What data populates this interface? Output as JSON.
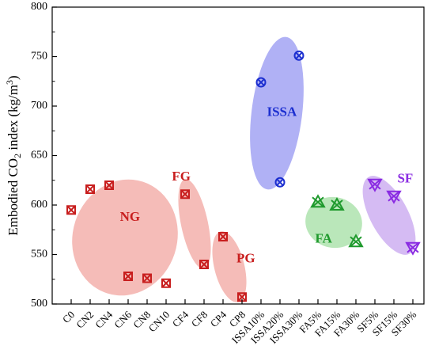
{
  "chart_data": {
    "type": "scatter",
    "title": "",
    "xlabel": "",
    "ylabel": "Embodied CO2 index (kg/m3)",
    "ylabel_parts": {
      "prefix": "Embodied CO",
      "sub": "2",
      "middle": " index (kg/m",
      "sup": "3",
      "suffix": ")"
    },
    "ylim": [
      500,
      800
    ],
    "yticks": [
      500,
      550,
      600,
      650,
      700,
      750,
      800
    ],
    "grid": false,
    "categories": [
      "C0",
      "CN2",
      "CN4",
      "CN6",
      "CN8",
      "CN10",
      "CF4",
      "CF8",
      "CP4",
      "CP8",
      "ISSA10%",
      "ISSA20%",
      "ISSA30%",
      "FA5%",
      "FA15%",
      "FA30%",
      "SF5%",
      "SF15%",
      "SF30%"
    ],
    "series": [
      {
        "group": "NG",
        "marker": "square-x",
        "color": "#c81e1e",
        "values": [
          595,
          616,
          620,
          528,
          526,
          521
        ],
        "x_index": [
          0,
          1,
          2,
          3,
          4,
          5
        ]
      },
      {
        "group": "FG",
        "marker": "square-x",
        "color": "#c81e1e",
        "values": [
          611,
          540
        ],
        "x_index": [
          6,
          7
        ]
      },
      {
        "group": "PG",
        "marker": "square-x",
        "color": "#c81e1e",
        "values": [
          568,
          507
        ],
        "x_index": [
          8,
          9
        ]
      },
      {
        "group": "ISSA",
        "marker": "circle-x",
        "color": "#1c2fd0",
        "values": [
          724,
          623,
          751
        ],
        "x_index": [
          10,
          11,
          12
        ]
      },
      {
        "group": "FA",
        "marker": "triangle-x",
        "color": "#1f9a2d",
        "values": [
          603,
          600,
          563
        ],
        "x_index": [
          13,
          14,
          15
        ]
      },
      {
        "group": "SF",
        "marker": "triangle-down-x",
        "color": "#8a2be2",
        "values": [
          621,
          609,
          557
        ],
        "x_index": [
          16,
          17,
          18
        ]
      }
    ],
    "annotations": [
      {
        "text": "NG",
        "color": "#c81e1e",
        "x_index": 3.1,
        "y": 587,
        "fill": "#f2a9a4"
      },
      {
        "text": "FG",
        "color": "#c81e1e",
        "x_index": 5.8,
        "y": 628,
        "fill": "#f2a9a4"
      },
      {
        "text": "PG",
        "color": "#c81e1e",
        "x_index": 9.2,
        "y": 545,
        "fill": "#f2a9a4"
      },
      {
        "text": "ISSA",
        "color": "#1c2fd0",
        "x_index": 11.1,
        "y": 693,
        "fill": "#9a9bf2"
      },
      {
        "text": "FA",
        "color": "#1f9a2d",
        "x_index": 13.3,
        "y": 565,
        "fill": "#a6e0a6"
      },
      {
        "text": "SF",
        "color": "#8a2be2",
        "x_index": 17.6,
        "y": 626,
        "fill": "#c9a8f0"
      }
    ]
  }
}
